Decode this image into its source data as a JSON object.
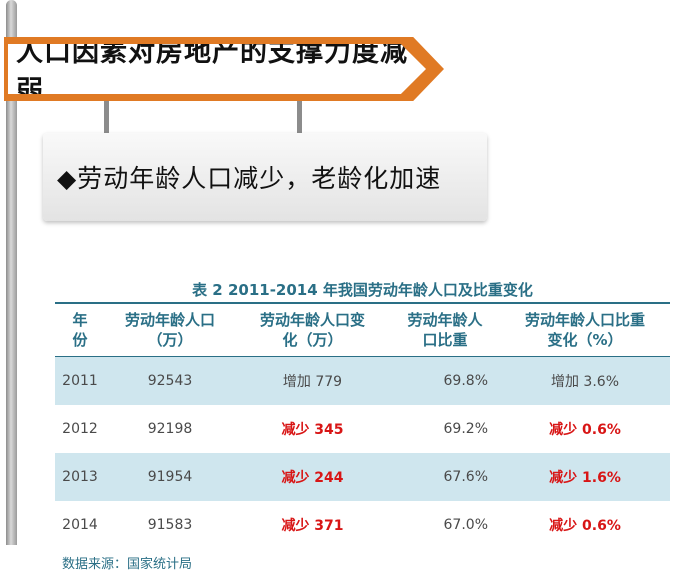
{
  "slide": {
    "title": "人口因素对房地产的支撑力度减弱",
    "bullet": "◆劳动年龄人口减少，老龄化加速"
  },
  "table": {
    "caption": "表 2  2011-2014 年我国劳动年龄人口及比重变化",
    "headers": [
      [
        "年",
        "份"
      ],
      [
        "劳动年龄人口",
        "（万）"
      ],
      [
        "劳动年龄人口变",
        "化（万）"
      ],
      [
        "劳动年龄人",
        "口比重"
      ],
      [
        "劳动年龄人口比重",
        "变化（%）"
      ]
    ],
    "rows": [
      {
        "year": "2011",
        "population": "92543",
        "change": "增加 779",
        "ratio": "69.8%",
        "ratio_change": "增加 3.6%"
      },
      {
        "year": "2012",
        "population": "92198",
        "change": "减少 345",
        "ratio": "69.2%",
        "ratio_change": "减少 0.6%"
      },
      {
        "year": "2013",
        "population": "91954",
        "change": "减少 244",
        "ratio": "67.6%",
        "ratio_change": "减少 1.6%"
      },
      {
        "year": "2014",
        "population": "91583",
        "change": "减少 371",
        "ratio": "67.0%",
        "ratio_change": "减少 0.6%"
      }
    ],
    "source": "数据来源：国家统计局"
  },
  "colors": {
    "accent": "#e07a24",
    "table_text": "#2a6f86",
    "negative": "#d81515",
    "row_shade": "#cfe6ee"
  }
}
